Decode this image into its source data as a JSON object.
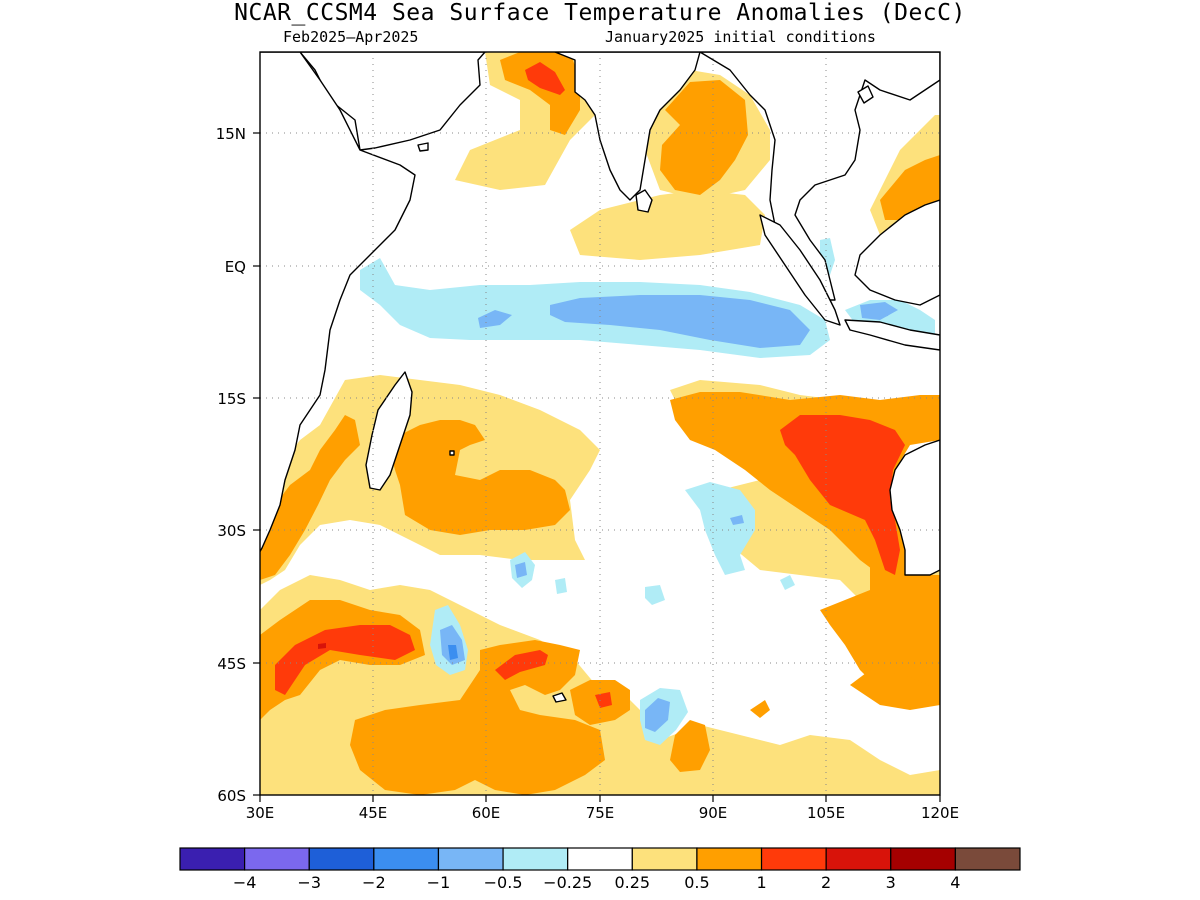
{
  "title": "NCAR_CCSM4 Sea Surface Temperature Anomalies (DecC)",
  "subtitle_left": "Feb2025–Apr2025",
  "subtitle_right": "January2025 initial conditions",
  "map": {
    "lon_range": [
      30,
      120
    ],
    "lat_range": [
      -60,
      24
    ],
    "lat_ticks": [
      "15N",
      "EQ",
      "15S",
      "30S",
      "45S",
      "60S"
    ],
    "lon_ticks": [
      "30E",
      "45E",
      "60E",
      "75E",
      "90E",
      "105E",
      "120E"
    ],
    "gridlines": true
  },
  "colorbar": {
    "colors": [
      "#3a1fb0",
      "#7b68ee",
      "#1e5fd8",
      "#3b8ef0",
      "#78b6f6",
      "#b0ecf6",
      "#ffffff",
      "#fde17c",
      "#ff9f00",
      "#ff3a0a",
      "#d8130a",
      "#a50000",
      "#7a4a3a"
    ],
    "labels": [
      "−4",
      "−3",
      "−2",
      "−1",
      "−0.5",
      "−0.25",
      "0.25",
      "0.5",
      "1",
      "2",
      "3",
      "4"
    ]
  },
  "fields": {
    "neg_025": "#b0ecf6",
    "neg_05": "#78b6f6",
    "neg_1": "#3b8ef0",
    "pos_025": "#fde17c",
    "pos_05": "#ff9f00",
    "pos_1": "#ff3a0a",
    "pos_2": "#d8130a"
  }
}
